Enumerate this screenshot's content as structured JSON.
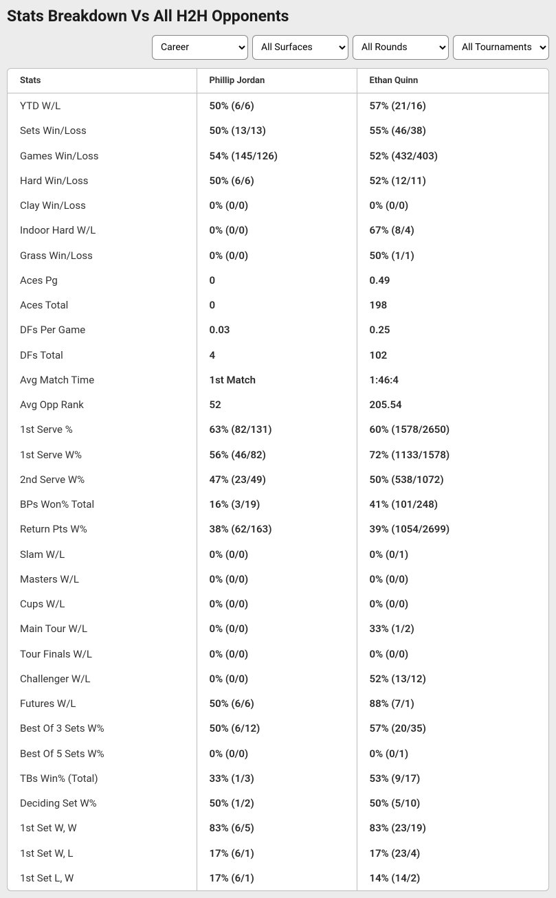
{
  "title": "Stats Breakdown Vs All H2H Opponents",
  "filters": {
    "career": "Career",
    "surfaces": "All Surfaces",
    "rounds": "All Rounds",
    "tournaments": "All Tournaments"
  },
  "columns": {
    "stats": "Stats",
    "player1": "Phillip Jordan",
    "player2": "Ethan Quinn"
  },
  "rows": [
    {
      "stat": "YTD W/L",
      "p1": "50% (6/6)",
      "p2": "57% (21/16)"
    },
    {
      "stat": "Sets Win/Loss",
      "p1": "50% (13/13)",
      "p2": "55% (46/38)"
    },
    {
      "stat": "Games Win/Loss",
      "p1": "54% (145/126)",
      "p2": "52% (432/403)"
    },
    {
      "stat": "Hard Win/Loss",
      "p1": "50% (6/6)",
      "p2": "52% (12/11)"
    },
    {
      "stat": "Clay Win/Loss",
      "p1": "0% (0/0)",
      "p2": "0% (0/0)"
    },
    {
      "stat": "Indoor Hard W/L",
      "p1": "0% (0/0)",
      "p2": "67% (8/4)"
    },
    {
      "stat": "Grass Win/Loss",
      "p1": "0% (0/0)",
      "p2": "50% (1/1)"
    },
    {
      "stat": "Aces Pg",
      "p1": "0",
      "p2": "0.49"
    },
    {
      "stat": "Aces Total",
      "p1": "0",
      "p2": "198"
    },
    {
      "stat": "DFs Per Game",
      "p1": "0.03",
      "p2": "0.25"
    },
    {
      "stat": "DFs Total",
      "p1": "4",
      "p2": "102"
    },
    {
      "stat": "Avg Match Time",
      "p1": "1st Match",
      "p2": "1:46:4"
    },
    {
      "stat": "Avg Opp Rank",
      "p1": "52",
      "p2": "205.54"
    },
    {
      "stat": "1st Serve %",
      "p1": "63% (82/131)",
      "p2": "60% (1578/2650)"
    },
    {
      "stat": "1st Serve W%",
      "p1": "56% (46/82)",
      "p2": "72% (1133/1578)"
    },
    {
      "stat": "2nd Serve W%",
      "p1": "47% (23/49)",
      "p2": "50% (538/1072)"
    },
    {
      "stat": "BPs Won% Total",
      "p1": "16% (3/19)",
      "p2": "41% (101/248)"
    },
    {
      "stat": "Return Pts W%",
      "p1": "38% (62/163)",
      "p2": "39% (1054/2699)"
    },
    {
      "stat": "Slam W/L",
      "p1": "0% (0/0)",
      "p2": "0% (0/1)"
    },
    {
      "stat": "Masters W/L",
      "p1": "0% (0/0)",
      "p2": "0% (0/0)"
    },
    {
      "stat": "Cups W/L",
      "p1": "0% (0/0)",
      "p2": "0% (0/0)"
    },
    {
      "stat": "Main Tour W/L",
      "p1": "0% (0/0)",
      "p2": "33% (1/2)"
    },
    {
      "stat": "Tour Finals W/L",
      "p1": "0% (0/0)",
      "p2": "0% (0/0)"
    },
    {
      "stat": "Challenger W/L",
      "p1": "0% (0/0)",
      "p2": "52% (13/12)"
    },
    {
      "stat": "Futures W/L",
      "p1": "50% (6/6)",
      "p2": "88% (7/1)"
    },
    {
      "stat": "Best Of 3 Sets W%",
      "p1": "50% (6/12)",
      "p2": "57% (20/35)"
    },
    {
      "stat": "Best Of 5 Sets W%",
      "p1": "0% (0/0)",
      "p2": "0% (0/1)"
    },
    {
      "stat": "TBs Win% (Total)",
      "p1": "33% (1/3)",
      "p2": "53% (9/17)"
    },
    {
      "stat": "Deciding Set W%",
      "p1": "50% (1/2)",
      "p2": "50% (5/10)"
    },
    {
      "stat": "1st Set W, W",
      "p1": "83% (6/5)",
      "p2": "83% (23/19)"
    },
    {
      "stat": "1st Set W, L",
      "p1": "17% (6/1)",
      "p2": "17% (23/4)"
    },
    {
      "stat": "1st Set L, W",
      "p1": "17% (6/1)",
      "p2": "14% (14/2)"
    }
  ]
}
